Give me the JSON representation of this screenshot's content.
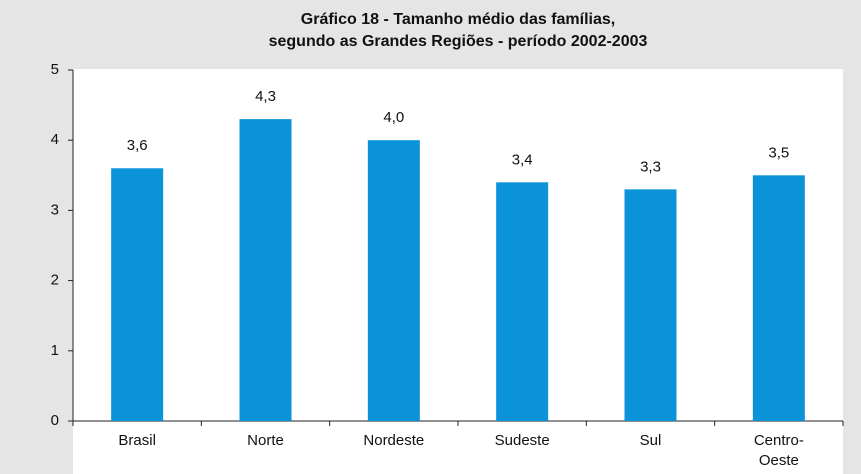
{
  "chart_data": {
    "type": "bar",
    "title": [
      "Gráfico 18 - Tamanho médio das famílias,",
      "segundo as Grandes Regiões - período 2002-2003"
    ],
    "categories": [
      "Brasil",
      "Norte",
      "Nordeste",
      "Sudeste",
      "Sul",
      "Centro-Oeste"
    ],
    "values": [
      3.6,
      4.3,
      4.0,
      3.4,
      3.3,
      3.5
    ],
    "value_labels": [
      "3,6",
      "4,3",
      "4,0",
      "3,4",
      "3,3",
      "3,5"
    ],
    "color": "#0a93d9",
    "ylim": [
      0,
      5
    ],
    "yticks": [
      0,
      1,
      2,
      3,
      4,
      5
    ],
    "grid": false
  }
}
